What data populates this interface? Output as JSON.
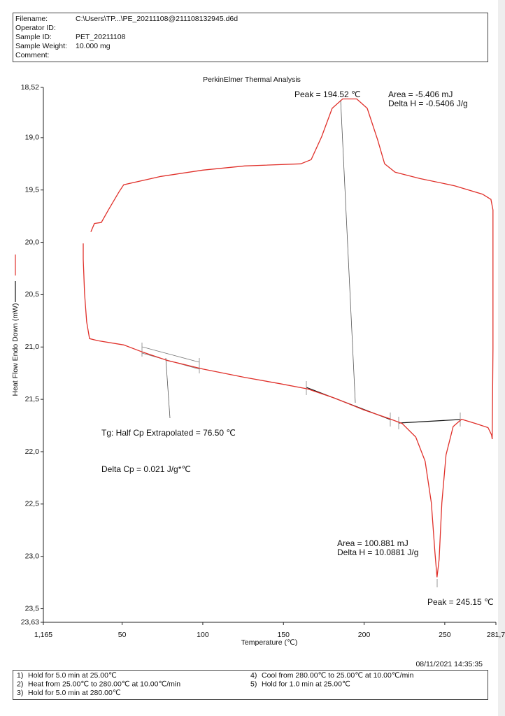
{
  "header": {
    "rows": [
      [
        "Filename:",
        "C:\\Users\\TP...\\PE_20211108@211108132945.d6d"
      ],
      [
        "Operator ID:",
        ""
      ],
      [
        "Sample ID:",
        "PET_20211108"
      ],
      [
        "Sample Weight:",
        "10.000 mg"
      ],
      [
        "Comment:",
        ""
      ]
    ]
  },
  "chart_data": {
    "type": "line",
    "title": "PerkinElmer Thermal Analysis",
    "x_label": "Temperature (℃)",
    "y_label": "Heat Flow Endo Down (mW)",
    "xlim": [
      1.165,
      281.7
    ],
    "xticks": [
      {
        "value": 1.165,
        "label": "1,165"
      },
      50,
      100,
      150,
      200,
      250,
      {
        "value": 281.7,
        "label": "281,7"
      }
    ],
    "ylim": [
      23.63,
      18.52
    ],
    "yticks": [
      {
        "value": 18.52,
        "label": "18,52"
      },
      {
        "value": 19.0,
        "label": "19,0"
      },
      {
        "value": 19.5,
        "label": "19,5"
      },
      {
        "value": 20.0,
        "label": "20,0"
      },
      {
        "value": 20.5,
        "label": "20,5"
      },
      {
        "value": 21.0,
        "label": "21,0"
      },
      {
        "value": 21.5,
        "label": "21,5"
      },
      {
        "value": 22.0,
        "label": "22,0"
      },
      {
        "value": 22.5,
        "label": "22,5"
      },
      {
        "value": 23.0,
        "label": "23,0"
      },
      {
        "value": 23.5,
        "label": "23,5"
      },
      {
        "value": 23.63,
        "label": "23,63"
      }
    ],
    "series": [
      {
        "color": "#e0302a",
        "x": [
          25.9,
          25.9,
          26.7,
          28.0,
          29.8,
          35,
          51,
          63,
          78.3,
          100,
          126,
          147.7,
          165,
          182,
          199.7,
          214.9,
          223.5,
          232,
          237.8,
          241.7,
          243.9,
          245.2,
          246.5,
          248.2,
          250.8,
          255.2,
          260.4,
          269,
          276.8,
          279,
          279.4
        ],
        "values": [
          20.01,
          20.16,
          20.49,
          20.76,
          20.92,
          20.94,
          20.98,
          21.05,
          21.13,
          21.21,
          21.29,
          21.35,
          21.4,
          21.49,
          21.6,
          21.68,
          21.73,
          21.86,
          22.09,
          22.49,
          22.96,
          23.2,
          23.03,
          22.49,
          22.03,
          21.76,
          21.69,
          21.73,
          21.77,
          21.84,
          21.88
        ]
      },
      {
        "color": "#e0302a",
        "x": [
          279.4,
          279.9,
          279.9,
          278.6,
          273.4,
          256.1,
          234.4,
          219.2,
          212.7,
          208.4,
          201.9,
          195.4,
          186.7,
          180.2,
          173.7,
          167.2,
          160.7,
          126,
          100,
          74,
          51,
          48,
          41.5,
          37.1,
          32.8,
          30.6
        ],
        "values": [
          21.88,
          21.02,
          19.69,
          19.59,
          19.54,
          19.46,
          19.39,
          19.33,
          19.25,
          19.02,
          18.72,
          18.63,
          18.63,
          18.72,
          18.99,
          19.21,
          19.25,
          19.27,
          19.31,
          19.37,
          19.45,
          19.52,
          19.69,
          19.81,
          19.82,
          19.9
        ]
      }
    ],
    "annotations": [
      "Peak = 194.52 ℃",
      "Area = -5.406 mJ",
      "Delta H = -0.5406 J/g",
      "Tg: Half Cp Extrapolated = 76.50 ℃",
      "Delta Cp = 0.021 J/g*℃",
      "Area = 100.881 mJ",
      "Delta H = 10.0881 J/g",
      "Peak = 245.15 ℃"
    ]
  },
  "footer": {
    "date": "08/11/2021 14:35:35",
    "steps": [
      [
        "1)",
        "Hold for 5.0 min at 25.00℃"
      ],
      [
        "2)",
        "Heat from 25.00℃ to 280.00℃ at 10.00℃/min"
      ],
      [
        "3)",
        "Hold for 5.0 min at 280.00℃"
      ],
      [
        "4)",
        "Cool from 280.00℃ to 25.00℃ at 10.00℃/min"
      ],
      [
        "5)",
        "Hold for 1.0 min at 25.00℃"
      ]
    ]
  }
}
